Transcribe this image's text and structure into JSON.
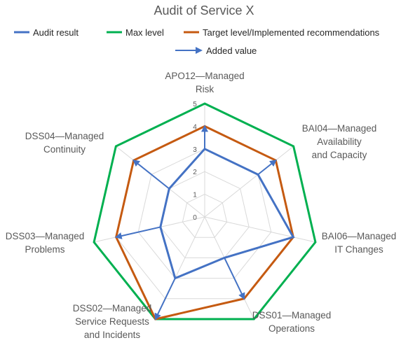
{
  "chart_data": {
    "type": "radar",
    "title": "Audit of Service X",
    "categories": [
      [
        "APO12—Managed",
        "Risk"
      ],
      [
        "BAI04—Managed",
        "Availability",
        "and Capacity"
      ],
      [
        "BAI06—Managed",
        "IT Changes"
      ],
      [
        "DSS01—Managed",
        "Operations"
      ],
      [
        "DSS02—Managed",
        "Service Requests",
        "and Incidents"
      ],
      [
        "DSS03—Managed",
        "Problems"
      ],
      [
        "DSS04—Managed",
        "Continuity"
      ]
    ],
    "rlim": [
      0,
      5
    ],
    "ticks": [
      "0",
      "1",
      "2",
      "3",
      "4",
      "5"
    ],
    "grid": true,
    "legend_position": "top",
    "series": [
      {
        "name": "Audit result",
        "color": "#4472c4",
        "values": [
          3,
          3,
          4,
          2,
          3,
          2,
          2
        ]
      },
      {
        "name": "Max level",
        "color": "#00b050",
        "values": [
          5,
          5,
          5,
          5,
          5,
          5,
          5
        ]
      },
      {
        "name": "Target level/Implemented recommendations",
        "color": "#c55a11",
        "values": [
          4,
          4,
          4,
          4,
          5,
          4,
          4
        ]
      }
    ],
    "arrows": {
      "name": "Added value",
      "color": "#4472c4",
      "items": [
        {
          "category": 0,
          "from": 3,
          "to": 4
        },
        {
          "category": 1,
          "from": 3,
          "to": 4
        },
        {
          "category": 3,
          "from": 2,
          "to": 4
        },
        {
          "category": 4,
          "from": 3,
          "to": 5
        },
        {
          "category": 5,
          "from": 2,
          "to": 4
        },
        {
          "category": 6,
          "from": 2,
          "to": 4
        }
      ]
    }
  }
}
